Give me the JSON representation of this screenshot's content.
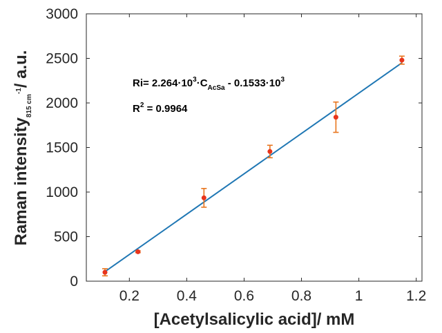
{
  "chart_data": {
    "type": "scatter",
    "title": "",
    "xlabel": "[Acetylsalicylic acid]/ mM",
    "ylabel": {
      "main": "Raman intensity",
      "sub": "815 cm",
      "sup": "-1",
      "tail": "/ a.u."
    },
    "xlim": [
      0.05,
      1.22
    ],
    "ylim": [
      0,
      3000
    ],
    "xticks": [
      0.2,
      0.4,
      0.6,
      0.8,
      1.0,
      1.2
    ],
    "xtick_labels": [
      "0.2",
      "0.4",
      "0.6",
      "0.8",
      "1",
      "1.2"
    ],
    "yticks": [
      0,
      500,
      1000,
      1500,
      2000,
      2500,
      3000
    ],
    "ytick_labels": [
      "0",
      "500",
      "1000",
      "1500",
      "2000",
      "2500",
      "3000"
    ],
    "grid": false,
    "series": [
      {
        "type": "scatter_errorbar",
        "color": "#e8341c",
        "error_color": "#e8741c",
        "x": [
          0.115,
          0.23,
          0.46,
          0.69,
          0.92,
          1.15
        ],
        "y": [
          100,
          330,
          935,
          1455,
          1840,
          2480
        ],
        "yerr": [
          40,
          10,
          105,
          70,
          170,
          45
        ]
      },
      {
        "type": "line",
        "color": "#1f77b4",
        "x": [
          0.115,
          1.15
        ],
        "y": [
          107,
          2450
        ]
      }
    ],
    "annotations": {
      "equation": {
        "part1": "Ri= 2.264·10",
        "sup1": "3",
        "part2": "·C",
        "sub1": "AcSa",
        "part3": " - 0.1533·10",
        "sup2": "3"
      },
      "r2": {
        "part1": "R",
        "sup": "2",
        "part2": " = 0.9964"
      }
    }
  }
}
